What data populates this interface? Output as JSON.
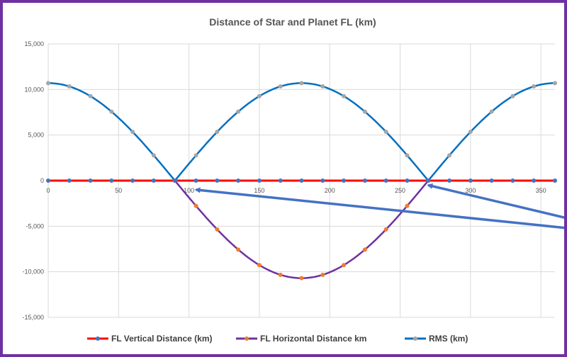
{
  "colors": {
    "frame": "#7030a0",
    "grid": "#d9d9d9",
    "vertical": "#ff0000",
    "horizontal": "#7030a0",
    "rms": "#0070c0",
    "vertical_marker": "#4472c4",
    "horizontal_marker": "#ed7d31",
    "rms_marker": "#a5a5a5",
    "arrow": "#4472c4"
  },
  "chart_data": {
    "type": "scatter",
    "title": "Distance of Star and Planet FL (km)",
    "xlim": [
      0,
      360
    ],
    "ylim": [
      -15000,
      15000
    ],
    "x_ticks": [
      0,
      50,
      100,
      150,
      200,
      250,
      300,
      350
    ],
    "y_ticks": [
      15000,
      10000,
      5000,
      0,
      -5000,
      -10000,
      -15000
    ],
    "x_tick_labels": [
      "0",
      "50",
      "100",
      "150",
      "200",
      "250",
      "300",
      "350"
    ],
    "y_tick_labels": [
      "15,000",
      "10,000",
      "5,000",
      "0",
      "-5,000",
      "-10,000",
      "-15,000"
    ],
    "grid": true,
    "legend_position": "bottom",
    "amplitude_km": 10700,
    "x": [
      0,
      15,
      30,
      45,
      60,
      75,
      90,
      105,
      120,
      135,
      150,
      165,
      180,
      195,
      210,
      225,
      240,
      255,
      270,
      285,
      300,
      315,
      330,
      345,
      360
    ],
    "series": [
      {
        "name": "FL Vertical Distance (km)",
        "values": [
          0,
          0,
          0,
          0,
          0,
          0,
          0,
          0,
          0,
          0,
          0,
          0,
          0,
          0,
          0,
          0,
          0,
          0,
          0,
          0,
          0,
          0,
          0,
          0,
          0
        ]
      },
      {
        "name": "FL Horizontal Distance km",
        "x": [
          90,
          105,
          120,
          135,
          150,
          165,
          180,
          195,
          210,
          225,
          240,
          255,
          270
        ],
        "values": [
          0,
          -2770,
          -5350,
          -7570,
          -9270,
          -10340,
          -10700,
          -10340,
          -9270,
          -7570,
          -5350,
          -2770,
          0
        ]
      },
      {
        "name": "RMS (km)",
        "values": [
          10700,
          10340,
          9270,
          7570,
          5350,
          2770,
          0,
          2770,
          5350,
          7570,
          9270,
          10340,
          10700,
          10340,
          9270,
          7570,
          5350,
          2770,
          0,
          2770,
          5350,
          7570,
          9270,
          10340,
          10700
        ]
      }
    ],
    "annotations": [
      {
        "type": "arrow",
        "points_to_x": 105,
        "points_to_y": -1000
      },
      {
        "type": "arrow",
        "points_to_x": 270,
        "points_to_y": -500
      }
    ]
  }
}
